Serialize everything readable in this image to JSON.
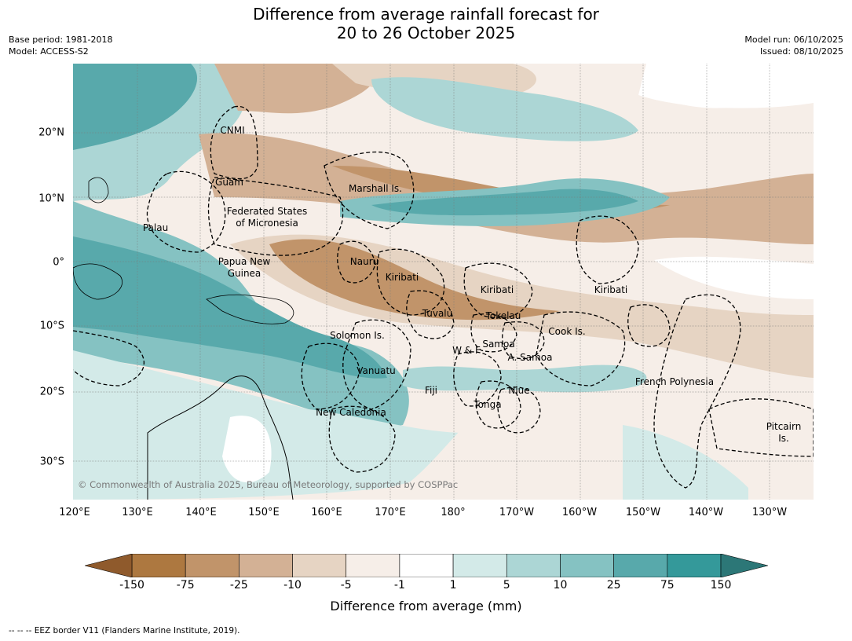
{
  "title_line1": "Difference from average rainfall forecast for",
  "title_line2": "20 to 26 October 2025",
  "meta_left": [
    "Base period: 1981-2018",
    "Model: ACCESS-S2"
  ],
  "meta_right": [
    "Model run: 06/10/2025",
    "Issued: 08/10/2025"
  ],
  "lat_labels": [
    "20°N",
    "10°N",
    "0°",
    "10°S",
    "20°S",
    "30°S"
  ],
  "lon_labels": [
    "120°E",
    "130°E",
    "140°E",
    "150°E",
    "160°E",
    "170°E",
    "180°",
    "170°W",
    "160°W",
    "150°W",
    "140°W",
    "130°W"
  ],
  "places": [
    "CNMI",
    "Guam",
    "Marshall Is.",
    "Federated States",
    "of Micronesia",
    "Palau",
    "Papua New",
    "Guinea",
    "Nauru",
    "Kiribati",
    "Kiribati",
    "Kiribati",
    "Tuvalu",
    "Tokelau",
    "Cook Is.",
    "Solomon Is.",
    "W & F",
    "Samoa",
    "A. Samoa",
    "Vanuatu",
    "Fiji",
    "Niue",
    "Tonga",
    "New Caledonia",
    "French Polynesia",
    "Pitcairn",
    "Is."
  ],
  "copyright": "© Commonwealth of Australia 2025, Bureau of Meteorology, supported by COSPPac",
  "colorbar": {
    "ticks": [
      "-150",
      "-75",
      "-25",
      "-10",
      "-5",
      "-1",
      "1",
      "5",
      "10",
      "25",
      "75",
      "150"
    ],
    "colors": {
      "extend_low": "#8f5a2c",
      "bins": [
        "#ad7840",
        "#c1946a",
        "#d3b195",
        "#e6d4c3",
        "#f6eee8",
        "#ffffff",
        "#d3eae8",
        "#acd6d5",
        "#85c2c2",
        "#58a9ab",
        "#34999a"
      ],
      "extend_high": "#2c7777"
    },
    "label": "Difference from average (mm)"
  },
  "footnote": "--  --  -- EEZ border V11 (Flanders Marine Institute, 2019)."
}
